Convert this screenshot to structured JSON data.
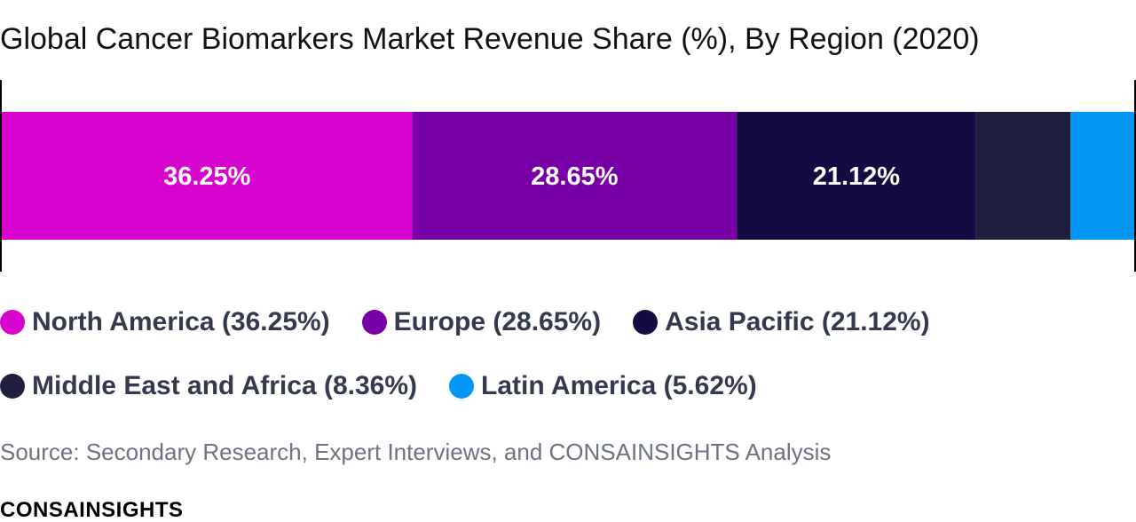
{
  "title": "Global Cancer Biomarkers Market Revenue Share (%), By Region (2020)",
  "chart_data": {
    "type": "bar",
    "orientation": "horizontal-stacked-100",
    "title": "Global Cancer Biomarkers Market Revenue Share (%), By Region (2020)",
    "unit": "%",
    "xlim": [
      0,
      100
    ],
    "grid": false,
    "legend_position": "bottom",
    "series": [
      {
        "name": "North America",
        "value": 36.25,
        "data_label": "36.25%",
        "legend_label": "North America (36.25%)",
        "color": "#d604cc"
      },
      {
        "name": "Europe",
        "value": 28.65,
        "data_label": "28.65%",
        "legend_label": "Europe (28.65%)",
        "color": "#7700a6"
      },
      {
        "name": "Asia Pacific",
        "value": 21.12,
        "data_label": "21.12%",
        "legend_label": "Asia Pacific (21.12%)",
        "color": "#160a42"
      },
      {
        "name": "Middle East and Africa",
        "value": 8.36,
        "data_label": "",
        "legend_label": "Middle East and Africa (8.36%)",
        "color": "#1f1f3d"
      },
      {
        "name": "Latin America",
        "value": 5.62,
        "data_label": "",
        "legend_label": "Latin America (5.62%)",
        "color": "#0496f4"
      }
    ]
  },
  "source": "Source: Secondary Research, Expert Interviews, and CONSAINSIGHTS Analysis",
  "brand": "CONSAINSIGHTS"
}
